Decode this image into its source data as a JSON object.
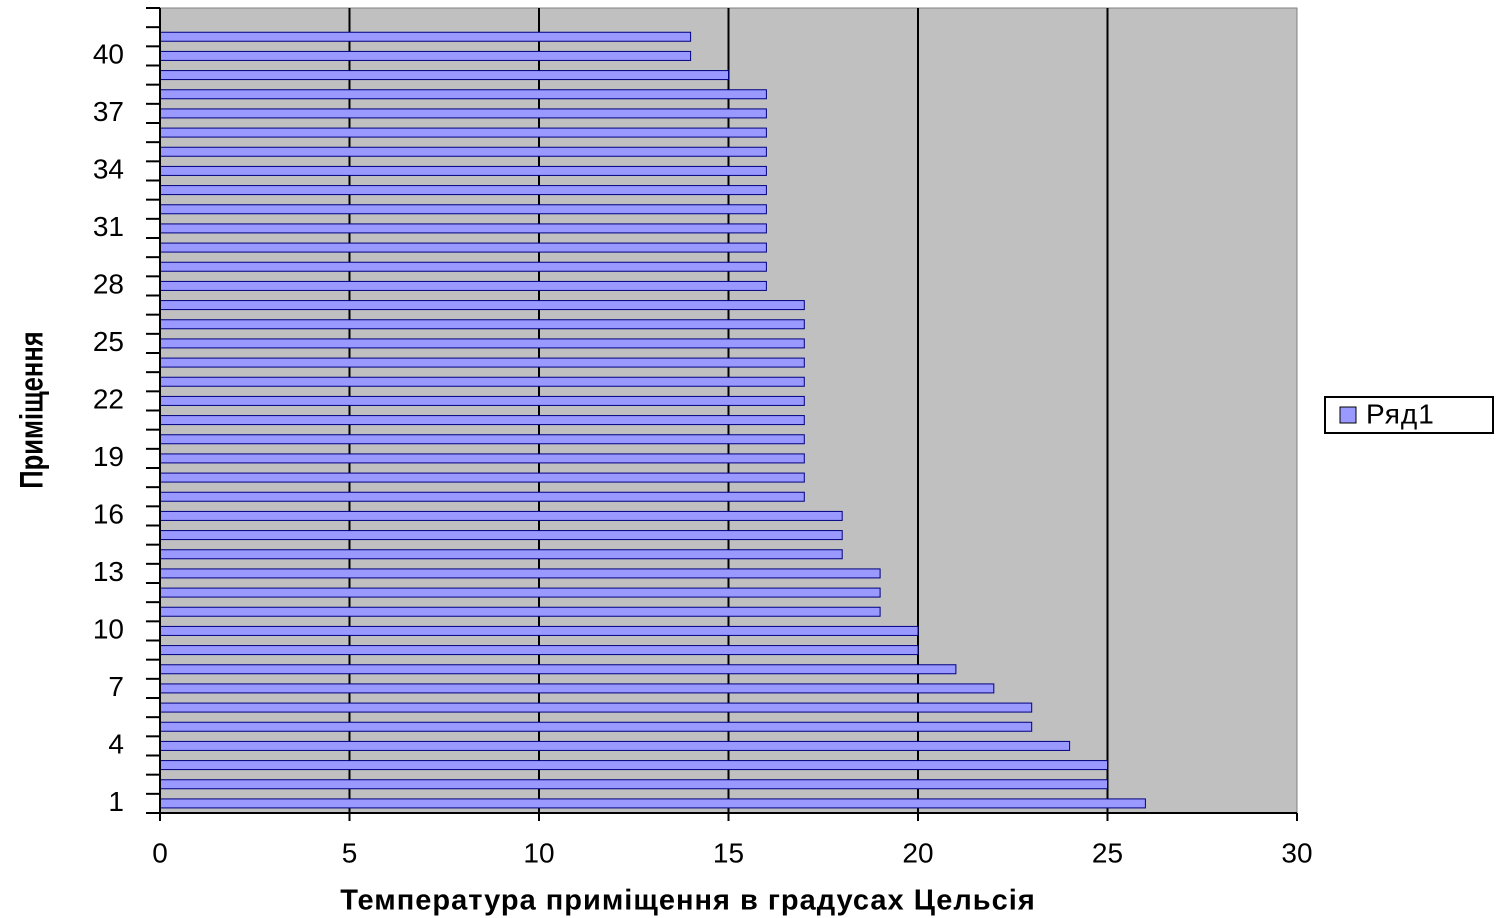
{
  "chart_data": {
    "type": "bar",
    "orientation": "horizontal",
    "x_label": "Температура приміщення в градусах Цельсія",
    "y_label": "Приміщення",
    "categories": [
      "1",
      null,
      null,
      "4",
      null,
      null,
      "7",
      null,
      null,
      "10",
      null,
      null,
      "13",
      null,
      null,
      "16",
      null,
      null,
      "19",
      null,
      null,
      "22",
      null,
      null,
      "25",
      null,
      null,
      "28",
      null,
      null,
      "31",
      null,
      null,
      "34",
      null,
      null,
      "37",
      null,
      null,
      "40",
      null,
      null
    ],
    "series": [
      {
        "name": "Ряд1",
        "color": "#9999ff",
        "values": [
          26,
          25,
          25,
          24,
          23,
          23,
          22,
          21,
          20,
          20,
          19,
          19,
          19,
          18,
          18,
          18,
          17,
          17,
          17,
          17,
          17,
          17,
          17,
          17,
          17,
          17,
          17,
          16,
          16,
          16,
          16,
          16,
          16,
          16,
          16,
          16,
          16,
          16,
          15,
          14,
          14,
          null
        ]
      }
    ],
    "xlim": [
      0,
      30
    ],
    "xticks": [
      0,
      5,
      10,
      15,
      20,
      25,
      30
    ],
    "grid": true,
    "legend": "right"
  }
}
